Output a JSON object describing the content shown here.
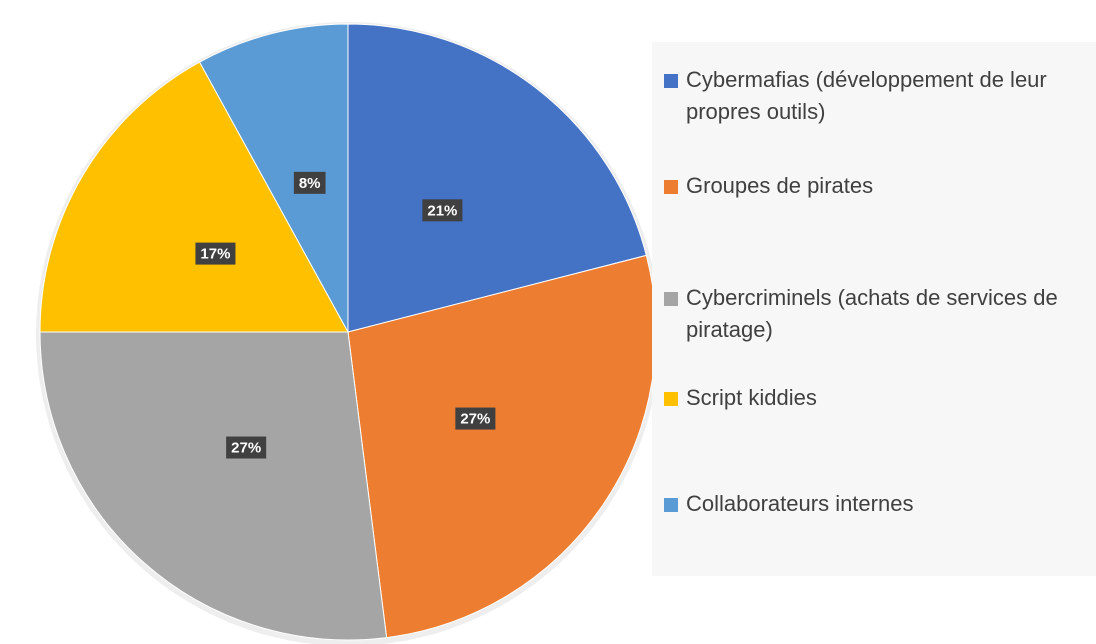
{
  "chart_data": {
    "type": "pie",
    "categories": [
      "Cybermafias (développement de leur propres outils)",
      "Groupes de pirates",
      "Cybercriminels (achats de services de piratage)",
      "Script kiddies",
      "Collaborateurs internes"
    ],
    "values": [
      21,
      27,
      27,
      17,
      8
    ],
    "value_labels": [
      "21%",
      "27%",
      "27%",
      "17%",
      "8%"
    ],
    "colors": [
      "#4472c4",
      "#ed7d31",
      "#a5a5a5",
      "#ffc000",
      "#5b9bd5"
    ]
  }
}
